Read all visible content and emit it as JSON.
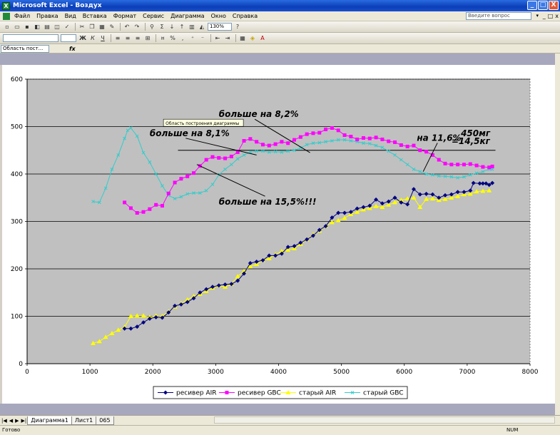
{
  "window": {
    "title": "Microsoft Excel - Воздух",
    "controls": [
      "_",
      "□",
      "X"
    ]
  },
  "menu": {
    "items": [
      "Файл",
      "Правка",
      "Вид",
      "Вставка",
      "Формат",
      "Сервис",
      "Диаграмма",
      "Окно",
      "Справка"
    ],
    "help_placeholder": "Введите вопрос",
    "doc_controls": [
      "_",
      "□",
      "x"
    ]
  },
  "toolbar": {
    "zoom": "130%"
  },
  "formula_bar": {
    "name_box": "Область пост...",
    "fx": "fx"
  },
  "chart_data": {
    "type": "line",
    "title": "",
    "xlabel": "",
    "ylabel": "",
    "xlim": [
      0,
      8000
    ],
    "ylim": [
      0,
      600
    ],
    "x_ticks": [
      "0",
      "1000",
      "2000",
      "3000",
      "4000",
      "5000",
      "6000",
      "7000",
      "8000"
    ],
    "y_ticks": [
      "0",
      "100",
      "200",
      "300",
      "400",
      "500",
      "600"
    ],
    "grid": "horizontal",
    "legend_position": "bottom",
    "series": [
      {
        "name": "ресивер AIR",
        "color": "#000080",
        "marker": "diamond",
        "points": [
          [
            1550,
            74
          ],
          [
            1650,
            74
          ],
          [
            1750,
            78
          ],
          [
            1850,
            87
          ],
          [
            1950,
            95
          ],
          [
            2050,
            98
          ],
          [
            2150,
            97
          ],
          [
            2250,
            108
          ],
          [
            2350,
            122
          ],
          [
            2450,
            125
          ],
          [
            2550,
            130
          ],
          [
            2650,
            138
          ],
          [
            2750,
            150
          ],
          [
            2850,
            157
          ],
          [
            2950,
            162
          ],
          [
            3050,
            165
          ],
          [
            3150,
            167
          ],
          [
            3250,
            168
          ],
          [
            3350,
            175
          ],
          [
            3450,
            190
          ],
          [
            3550,
            212
          ],
          [
            3650,
            215
          ],
          [
            3750,
            218
          ],
          [
            3850,
            228
          ],
          [
            3950,
            228
          ],
          [
            4050,
            232
          ],
          [
            4150,
            246
          ],
          [
            4250,
            248
          ],
          [
            4350,
            255
          ],
          [
            4450,
            262
          ],
          [
            4550,
            270
          ],
          [
            4650,
            282
          ],
          [
            4750,
            290
          ],
          [
            4850,
            308
          ],
          [
            4950,
            318
          ],
          [
            5050,
            318
          ],
          [
            5150,
            320
          ],
          [
            5250,
            327
          ],
          [
            5350,
            330
          ],
          [
            5450,
            333
          ],
          [
            5550,
            346
          ],
          [
            5650,
            338
          ],
          [
            5750,
            342
          ],
          [
            5850,
            350
          ],
          [
            5950,
            340
          ],
          [
            6050,
            336
          ],
          [
            6150,
            368
          ],
          [
            6250,
            357
          ],
          [
            6350,
            358
          ],
          [
            6450,
            357
          ],
          [
            6550,
            350
          ],
          [
            6650,
            355
          ],
          [
            6750,
            357
          ],
          [
            6850,
            362
          ],
          [
            6950,
            362
          ],
          [
            7050,
            365
          ],
          [
            7100,
            381
          ],
          [
            7200,
            380
          ],
          [
            7250,
            380
          ],
          [
            7300,
            380
          ],
          [
            7350,
            377
          ],
          [
            7400,
            381
          ]
        ]
      },
      {
        "name": "ресивер GBC",
        "color": "#ff00ff",
        "marker": "square",
        "points": [
          [
            1550,
            340
          ],
          [
            1650,
            328
          ],
          [
            1750,
            318
          ],
          [
            1850,
            320
          ],
          [
            1950,
            326
          ],
          [
            2050,
            335
          ],
          [
            2150,
            333
          ],
          [
            2250,
            359
          ],
          [
            2350,
            382
          ],
          [
            2450,
            390
          ],
          [
            2550,
            395
          ],
          [
            2650,
            402
          ],
          [
            2750,
            417
          ],
          [
            2850,
            430
          ],
          [
            2950,
            436
          ],
          [
            3050,
            434
          ],
          [
            3150,
            433
          ],
          [
            3250,
            437
          ],
          [
            3350,
            446
          ],
          [
            3450,
            470
          ],
          [
            3550,
            474
          ],
          [
            3650,
            468
          ],
          [
            3750,
            462
          ],
          [
            3850,
            460
          ],
          [
            3950,
            463
          ],
          [
            4050,
            468
          ],
          [
            4150,
            465
          ],
          [
            4250,
            472
          ],
          [
            4350,
            478
          ],
          [
            4450,
            484
          ],
          [
            4550,
            486
          ],
          [
            4650,
            487
          ],
          [
            4750,
            494
          ],
          [
            4850,
            497
          ],
          [
            4950,
            492
          ],
          [
            5050,
            482
          ],
          [
            5150,
            479
          ],
          [
            5250,
            473
          ],
          [
            5350,
            476
          ],
          [
            5450,
            475
          ],
          [
            5550,
            477
          ],
          [
            5650,
            473
          ],
          [
            5750,
            469
          ],
          [
            5850,
            467
          ],
          [
            5950,
            461
          ],
          [
            6050,
            458
          ],
          [
            6150,
            460
          ],
          [
            6250,
            450
          ],
          [
            6350,
            447
          ],
          [
            6450,
            440
          ],
          [
            6550,
            430
          ],
          [
            6650,
            422
          ],
          [
            6750,
            420
          ],
          [
            6850,
            420
          ],
          [
            6950,
            420
          ],
          [
            7050,
            421
          ],
          [
            7150,
            418
          ],
          [
            7250,
            415
          ],
          [
            7350,
            414
          ],
          [
            7400,
            416
          ]
        ]
      },
      {
        "name": "старый AIR",
        "color": "#ffff00",
        "marker": "triangle",
        "points": [
          [
            1050,
            43
          ],
          [
            1150,
            47
          ],
          [
            1250,
            56
          ],
          [
            1350,
            64
          ],
          [
            1450,
            71
          ],
          [
            1550,
            77
          ],
          [
            1650,
            100
          ],
          [
            1750,
            101
          ],
          [
            1850,
            101
          ],
          [
            1950,
            98
          ],
          [
            2050,
            101
          ],
          [
            2150,
            100
          ],
          [
            2250,
            110
          ],
          [
            2350,
            120
          ],
          [
            2450,
            127
          ],
          [
            2550,
            135
          ],
          [
            2650,
            142
          ],
          [
            2750,
            147
          ],
          [
            2850,
            153
          ],
          [
            2950,
            160
          ],
          [
            3050,
            165
          ],
          [
            3150,
            162
          ],
          [
            3250,
            168
          ],
          [
            3350,
            184
          ],
          [
            3450,
            195
          ],
          [
            3550,
            205
          ],
          [
            3650,
            210
          ],
          [
            3750,
            218
          ],
          [
            3850,
            222
          ],
          [
            3950,
            230
          ],
          [
            4050,
            237
          ],
          [
            4150,
            240
          ],
          [
            4250,
            243
          ],
          [
            4350,
            252
          ],
          [
            4450,
            262
          ],
          [
            4550,
            272
          ],
          [
            4650,
            280
          ],
          [
            4750,
            290
          ],
          [
            4850,
            298
          ],
          [
            4950,
            302
          ],
          [
            5050,
            307
          ],
          [
            5150,
            315
          ],
          [
            5250,
            320
          ],
          [
            5350,
            325
          ],
          [
            5450,
            328
          ],
          [
            5550,
            332
          ],
          [
            5650,
            330
          ],
          [
            5750,
            335
          ],
          [
            5850,
            340
          ],
          [
            5950,
            345
          ],
          [
            6050,
            348
          ],
          [
            6150,
            350
          ],
          [
            6250,
            330
          ],
          [
            6350,
            347
          ],
          [
            6450,
            348
          ],
          [
            6550,
            345
          ],
          [
            6650,
            347
          ],
          [
            6750,
            350
          ],
          [
            6850,
            353
          ],
          [
            6950,
            357
          ],
          [
            7050,
            358
          ],
          [
            7150,
            363
          ],
          [
            7250,
            364
          ],
          [
            7350,
            365
          ]
        ]
      },
      {
        "name": "старый GBC",
        "color": "#33cccc",
        "marker": "x",
        "points": [
          [
            1050,
            342
          ],
          [
            1150,
            340
          ],
          [
            1250,
            370
          ],
          [
            1350,
            410
          ],
          [
            1450,
            440
          ],
          [
            1550,
            475
          ],
          [
            1600,
            492
          ],
          [
            1650,
            497
          ],
          [
            1750,
            480
          ],
          [
            1850,
            445
          ],
          [
            1950,
            425
          ],
          [
            2050,
            400
          ],
          [
            2150,
            375
          ],
          [
            2250,
            355
          ],
          [
            2350,
            348
          ],
          [
            2450,
            352
          ],
          [
            2550,
            358
          ],
          [
            2650,
            360
          ],
          [
            2750,
            360
          ],
          [
            2850,
            365
          ],
          [
            2950,
            378
          ],
          [
            3050,
            398
          ],
          [
            3150,
            410
          ],
          [
            3250,
            420
          ],
          [
            3350,
            432
          ],
          [
            3450,
            440
          ],
          [
            3550,
            446
          ],
          [
            3650,
            448
          ],
          [
            3750,
            448
          ],
          [
            3850,
            446
          ],
          [
            3950,
            447
          ],
          [
            4050,
            446
          ],
          [
            4150,
            448
          ],
          [
            4250,
            450
          ],
          [
            4350,
            455
          ],
          [
            4450,
            462
          ],
          [
            4550,
            465
          ],
          [
            4650,
            466
          ],
          [
            4750,
            468
          ],
          [
            4850,
            470
          ],
          [
            4950,
            472
          ],
          [
            5050,
            472
          ],
          [
            5150,
            470
          ],
          [
            5250,
            468
          ],
          [
            5350,
            465
          ],
          [
            5450,
            464
          ],
          [
            5550,
            460
          ],
          [
            5650,
            456
          ],
          [
            5750,
            448
          ],
          [
            5850,
            440
          ],
          [
            5950,
            430
          ],
          [
            6050,
            420
          ],
          [
            6150,
            410
          ],
          [
            6250,
            405
          ],
          [
            6350,
            400
          ],
          [
            6450,
            398
          ],
          [
            6550,
            396
          ],
          [
            6650,
            395
          ],
          [
            6750,
            394
          ],
          [
            6850,
            392
          ],
          [
            6950,
            394
          ],
          [
            7050,
            398
          ],
          [
            7150,
            402
          ],
          [
            7250,
            405
          ],
          [
            7350,
            410
          ],
          [
            7400,
            410
          ]
        ]
      }
    ],
    "reference_line": {
      "y": 450,
      "x_from": 2400,
      "x_to": 7450
    },
    "tooltip": "Область построения диаграммы",
    "annotations": [
      {
        "text": "больше на 8,2%",
        "x": 3050,
        "y": 520,
        "pointer": [
          4500,
          445
        ]
      },
      {
        "text": "больше на 8,1%",
        "x": 1950,
        "y": 480,
        "pointer": [
          3650,
          440
        ]
      },
      {
        "text": "больше на 15,5%!!!",
        "x": 3050,
        "y": 335,
        "pointer": [
          2700,
          420
        ]
      },
      {
        "text": "на 11,6%",
        "x": 6200,
        "y": 470,
        "pointer": [
          6300,
          405
        ]
      },
      {
        "text": "450мг",
        "x": 6900,
        "y": 480
      },
      {
        "text": "=14,5кг",
        "x": 6750,
        "y": 463
      }
    ]
  },
  "sheets": {
    "nav": [
      "|◀",
      "◀",
      "▶",
      "▶|"
    ],
    "tabs": [
      "Диаграмма1",
      "Лист1",
      "065"
    ],
    "active": "Диаграмма1"
  },
  "status": {
    "ready": "Готово",
    "num": "NUM"
  }
}
